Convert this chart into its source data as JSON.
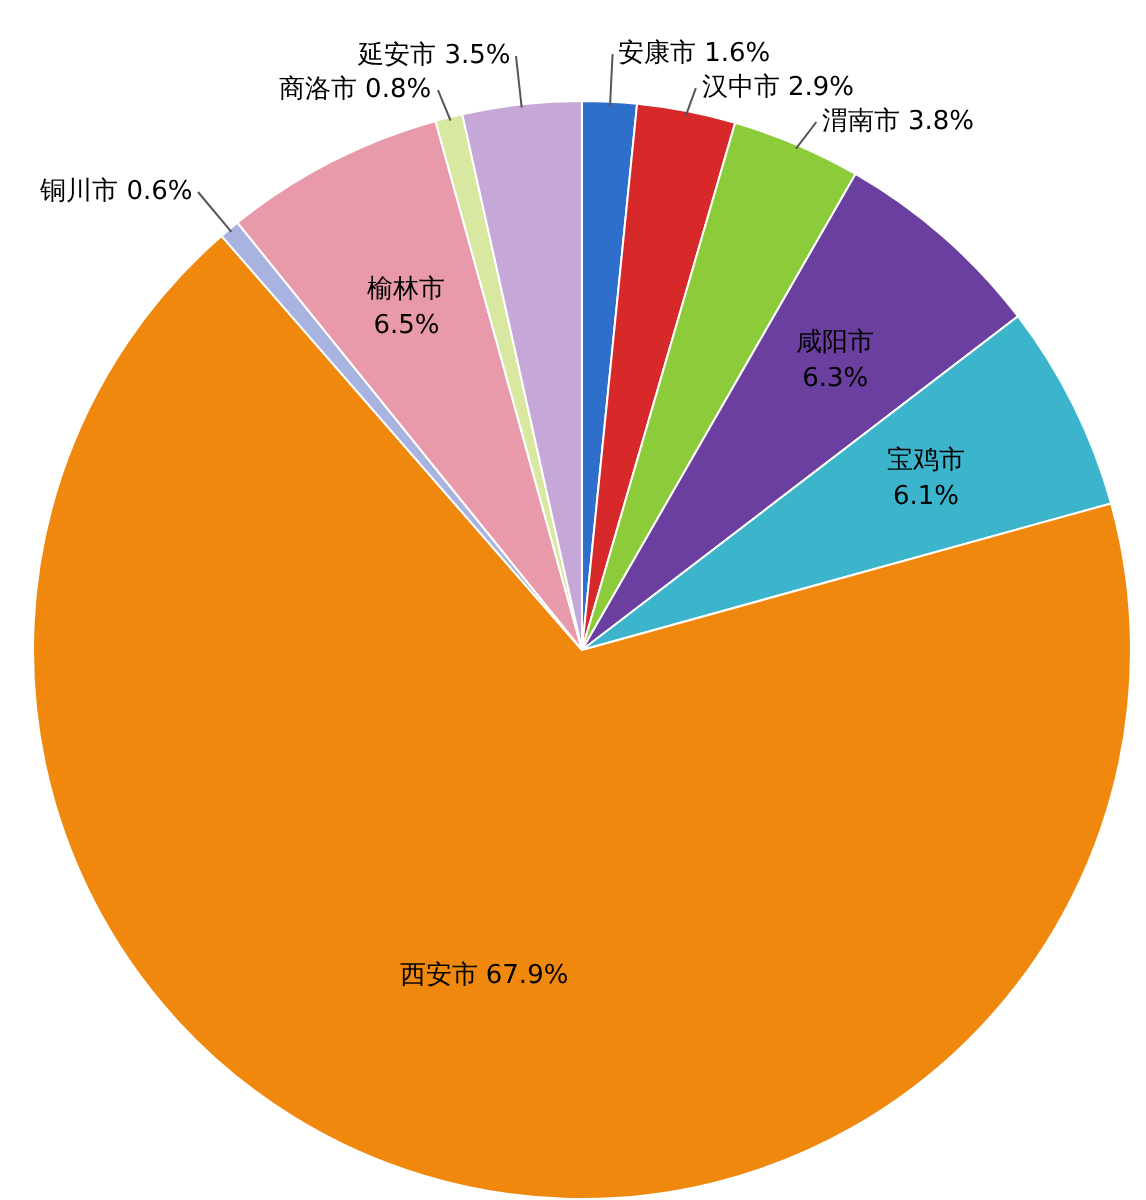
{
  "chart_data": {
    "type": "pie",
    "categories": [
      "安康市",
      "汉中市",
      "渭南市",
      "咸阳市",
      "宝鸡市",
      "西安市",
      "铜川市",
      "榆林市",
      "商洛市",
      "延安市"
    ],
    "values": [
      1.6,
      2.9,
      3.8,
      6.3,
      6.1,
      67.9,
      0.6,
      6.5,
      0.8,
      3.5
    ],
    "colors": [
      "#2e6fcc",
      "#d7282a",
      "#8ccc3a",
      "#6a3fa0",
      "#3cb5cc",
      "#f0880e",
      "#a9b3e0",
      "#e99aaa",
      "#d8e8a0",
      "#c6a8d8"
    ],
    "value_labels": [
      "1.6%",
      "2.9%",
      "3.8%",
      "6.3%",
      "6.1%",
      "67.9%",
      "0.6%",
      "6.5%",
      "0.8%",
      "3.5%"
    ],
    "legend": false
  }
}
